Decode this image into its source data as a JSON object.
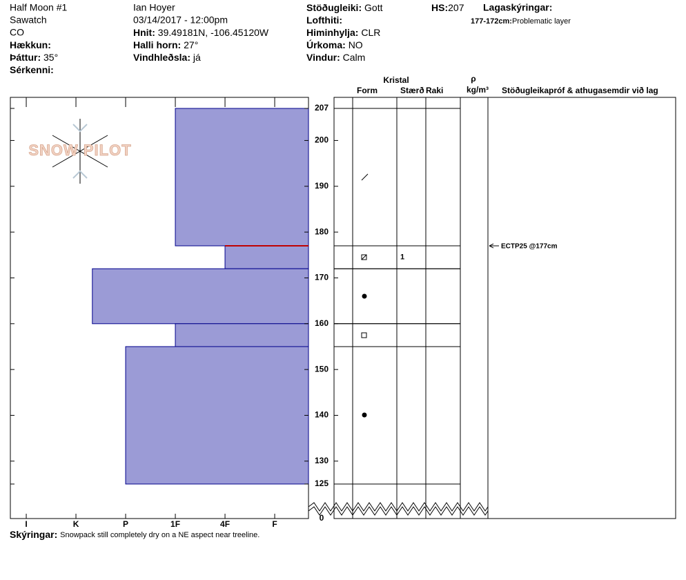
{
  "header": {
    "site": "Half Moon #1",
    "range": "Sawatch",
    "state": "CO",
    "elevation": {
      "label": "Hækkun:"
    },
    "aspect": {
      "label": "Þáttur:",
      "value": "35°"
    },
    "features": {
      "label": "Sérkenni:"
    },
    "observer": "Ian Hoyer",
    "datetime": "03/14/2017 - 12:00pm",
    "coords": {
      "label": "Hnit:",
      "value": "39.49181N, -106.45120W"
    },
    "slope": {
      "label": "Halli horn:",
      "value": "27°"
    },
    "wind_loading": {
      "label": "Vindhleðsla:",
      "value": "já"
    },
    "stability": {
      "label": "Stöðugleiki:",
      "value": "Gott"
    },
    "air_temp": {
      "label": "Lofthiti:"
    },
    "sky": {
      "label": "Himinhylja:",
      "value": "CLR"
    },
    "precip": {
      "label": "Úrkoma:",
      "value": "NO"
    },
    "wind": {
      "label": "Vindur:",
      "value": "Calm"
    },
    "hs": {
      "label": "HS:",
      "value": 207
    },
    "layer_notes": {
      "label": "Lagaskýringar:",
      "items": [
        {
          "label": "177-172cm:",
          "value": "Problematic layer"
        }
      ]
    }
  },
  "chart_data": {
    "type": "snow-profile",
    "logo": "SNOW PILOT",
    "ylim": [
      125,
      207
    ],
    "depth_ticks": [
      207,
      200,
      190,
      180,
      170,
      160,
      150,
      140,
      130,
      125,
      0
    ],
    "xlim": [
      6.32,
      0.32
    ],
    "hardness_ticks": [
      {
        "value": 6,
        "label": "I"
      },
      {
        "value": 5,
        "label": "K"
      },
      {
        "value": 4,
        "label": "P"
      },
      {
        "value": 3,
        "label": "1F"
      },
      {
        "value": 2,
        "label": "4F"
      },
      {
        "value": 1,
        "label": "F"
      }
    ],
    "bar_color": "#9b9bd6",
    "layers": [
      {
        "top": 207,
        "bottom": 177,
        "hardness": 3
      },
      {
        "top": 177,
        "bottom": 172,
        "hardness": 2,
        "size": "1"
      },
      {
        "top": 172,
        "bottom": 160,
        "hardness": 4.67
      },
      {
        "top": 160,
        "bottom": 155,
        "hardness": 3
      },
      {
        "top": 155,
        "bottom": 125,
        "hardness": 4
      }
    ],
    "problem_layer": 177,
    "tests": [
      {
        "depth": 177,
        "label": "ECTP25 @177cm"
      }
    ],
    "columns": {
      "crystal": "Kristal",
      "form": "Form",
      "size": "Stærð",
      "moisture": "Raki",
      "density": "ρ",
      "density_unit": "kg/m³",
      "comments": "Stöðugleikapróf & athugasemdir við lag"
    }
  },
  "footer": {
    "label": "Skýringar:",
    "value": "Snowpack still completely dry on a NE aspect near treeline."
  }
}
